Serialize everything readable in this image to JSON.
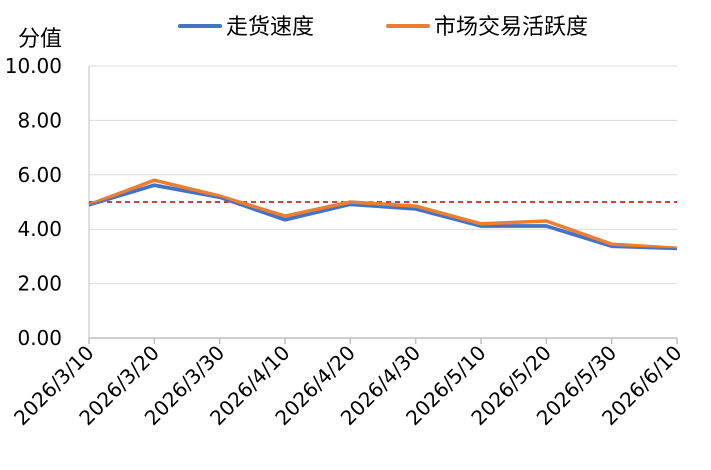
{
  "chart_data": {
    "type": "line",
    "ylabel": "分值",
    "ylim": [
      0,
      10
    ],
    "y_ticks": [
      "0.00",
      "2.00",
      "4.00",
      "6.00",
      "8.00",
      "10.00"
    ],
    "x": [
      "2026/3/10",
      "2026/3/20",
      "2026/3/30",
      "2026/4/10",
      "2026/4/20",
      "2026/4/30",
      "2026/5/10",
      "2026/5/20",
      "2026/5/30",
      "2026/6/10"
    ],
    "series": [
      {
        "name": "走货速度",
        "color": "#4472C4",
        "values": [
          4.9,
          5.62,
          5.18,
          4.35,
          4.92,
          4.75,
          4.12,
          4.12,
          3.38,
          3.3
        ]
      },
      {
        "name": "市场交易活跃度",
        "color": "#ED7D31",
        "values": [
          4.9,
          5.8,
          5.22,
          4.48,
          5.0,
          4.85,
          4.2,
          4.3,
          3.45,
          3.3
        ]
      }
    ],
    "reference_line": {
      "value": 5.0,
      "color": "#C00000",
      "style": "dashed"
    },
    "legend_position": "top",
    "grid": "horizontal"
  }
}
